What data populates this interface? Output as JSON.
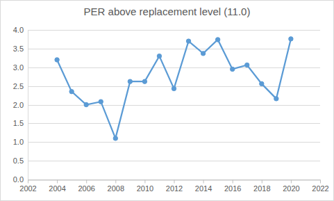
{
  "chart_data": {
    "type": "line",
    "title": "PER above replacement level (11.0)",
    "x": [
      2004,
      2005,
      2006,
      2007,
      2008,
      2009,
      2010,
      2011,
      2012,
      2013,
      2014,
      2015,
      2016,
      2017,
      2018,
      2019,
      2020
    ],
    "values": [
      3.2,
      2.35,
      2.0,
      2.08,
      1.1,
      2.62,
      2.62,
      3.3,
      2.43,
      3.7,
      3.37,
      3.74,
      2.95,
      3.06,
      2.56,
      2.16,
      3.76
    ],
    "color": "#5b9bd5",
    "marker": "circle",
    "line_style": "solid",
    "grid": true,
    "xlim": [
      2002,
      2022
    ],
    "xticks": [
      2002,
      2004,
      2006,
      2008,
      2010,
      2012,
      2014,
      2016,
      2018,
      2020,
      2022
    ],
    "ylim": [
      0,
      4
    ],
    "yticks": [
      {
        "value": 0,
        "label": "0.0"
      },
      0.5,
      {
        "value": 1,
        "label": "1.0"
      },
      1.5,
      {
        "value": 2,
        "label": "2.0"
      },
      2.5,
      {
        "value": 3,
        "label": "3.0"
      },
      3.5,
      {
        "value": 4,
        "label": "4.0"
      }
    ]
  }
}
